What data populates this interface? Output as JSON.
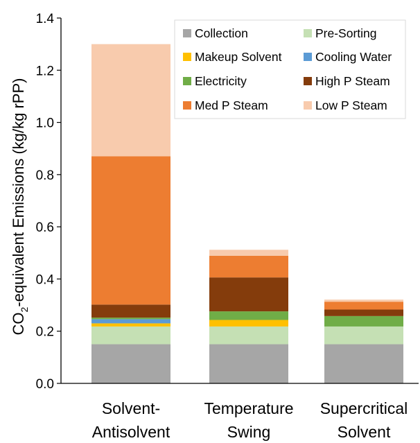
{
  "chart_data": {
    "type": "bar",
    "stacked": true,
    "categories": [
      [
        "Solvent-",
        "Antisolvent"
      ],
      [
        "Temperature",
        "Swing"
      ],
      [
        "Supercritical",
        "Solvent"
      ]
    ],
    "ylabel_parts": [
      "CO",
      "2",
      "-equivalent Emissions (kg/kg rPP)"
    ],
    "ylim": [
      0,
      1.4
    ],
    "yticks": [
      0.0,
      0.2,
      0.4,
      0.6,
      0.8,
      1.0,
      1.2,
      1.4
    ],
    "grid": false,
    "legend_position": "top-right",
    "series": [
      {
        "name": "Collection",
        "color": "#a6a6a6",
        "values": [
          0.15,
          0.15,
          0.15
        ]
      },
      {
        "name": "Pre-Sorting",
        "color": "#c5e0b4",
        "values": [
          0.068,
          0.068,
          0.068
        ]
      },
      {
        "name": "Makeup Solvent",
        "color": "#ffc000",
        "values": [
          0.012,
          0.025,
          0.0
        ]
      },
      {
        "name": "Cooling Water",
        "color": "#5b9bd5",
        "values": [
          0.016,
          0.0,
          0.0
        ]
      },
      {
        "name": "Electricity",
        "color": "#70ad47",
        "values": [
          0.006,
          0.033,
          0.04
        ]
      },
      {
        "name": "High P Steam",
        "color": "#843c0c",
        "values": [
          0.05,
          0.13,
          0.025
        ]
      },
      {
        "name": "Med P Steam",
        "color": "#ed7d31",
        "values": [
          0.568,
          0.083,
          0.03
        ]
      },
      {
        "name": "Low P Steam",
        "color": "#f8cbad",
        "values": [
          0.43,
          0.023,
          0.008
        ]
      }
    ]
  }
}
